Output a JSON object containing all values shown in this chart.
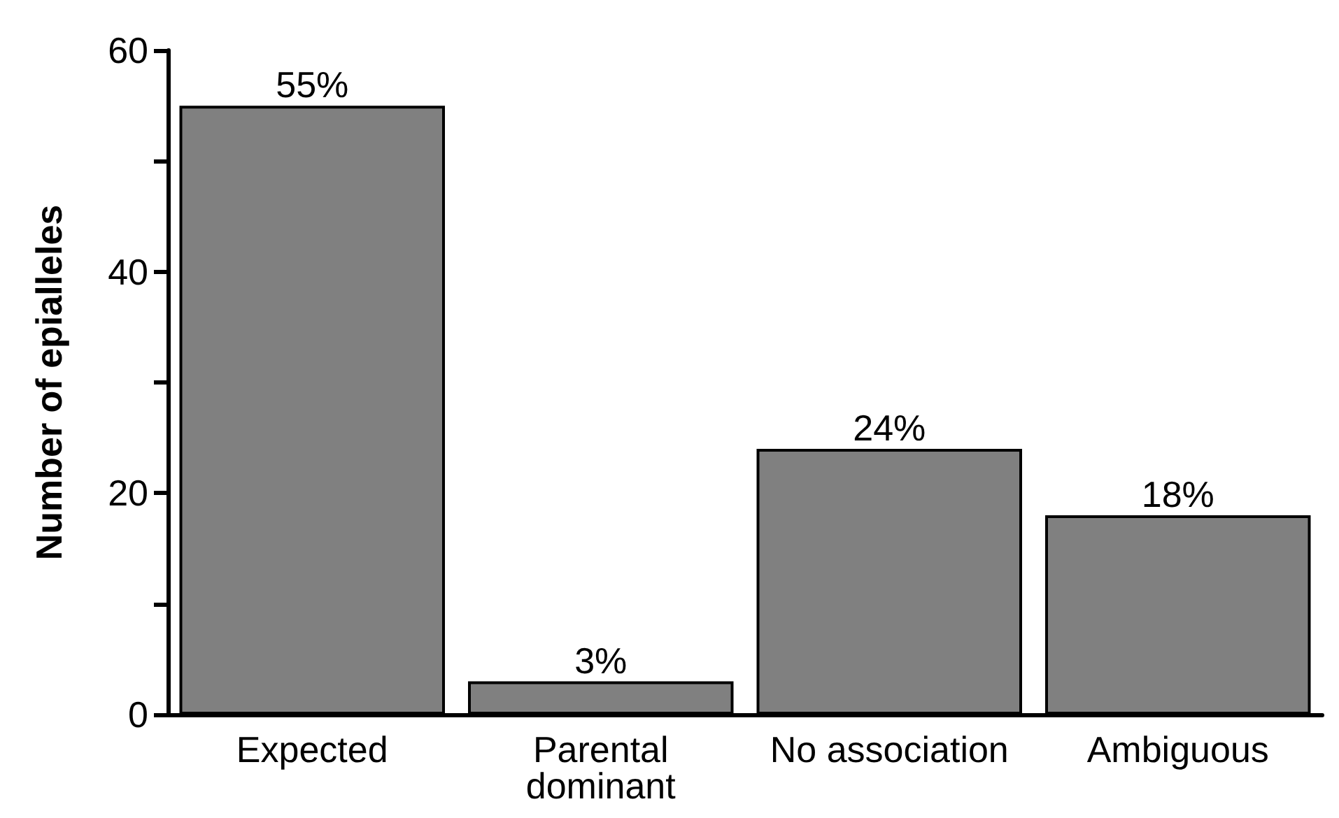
{
  "chart_data": {
    "type": "bar",
    "ylabel": "Number of epialleles",
    "categories": [
      "Expected",
      "Parental\ndominant",
      "No association",
      "Ambiguous"
    ],
    "values": [
      55,
      3,
      24,
      18
    ],
    "color": "#808080",
    "value_labels": [
      "55%",
      "3%",
      "24%",
      "18%"
    ],
    "ylim": [
      0,
      60
    ],
    "yticks": [
      0,
      {
        "value": 10,
        "label": null
      },
      20,
      {
        "value": 30,
        "label": null
      },
      40,
      {
        "value": 50,
        "label": null
      },
      60
    ],
    "grid": false
  }
}
